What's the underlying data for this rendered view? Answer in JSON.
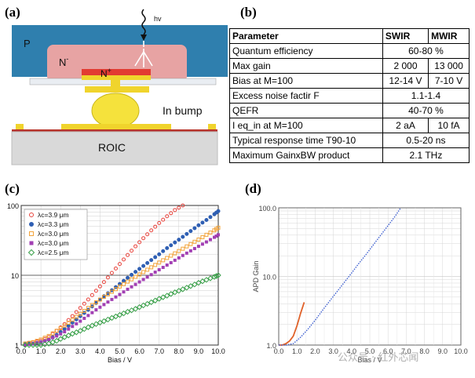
{
  "panels": {
    "a": {
      "label": "(a)",
      "p_label": "P",
      "n_minus_label": "N",
      "n_minus_sup": "-",
      "n_plus_label": "N",
      "n_plus_sup": "+",
      "hv_label": "hv",
      "bump_label": "In bump",
      "roic_label": "ROIC"
    },
    "b": {
      "label": "(b)",
      "headers": [
        "Parameter",
        "SWIR",
        "MWIR"
      ],
      "rows": [
        {
          "param": "Quantum efficiency",
          "span": "60-80 %"
        },
        {
          "param": "Max gain",
          "swir": "2 000",
          "mwir": "13 000"
        },
        {
          "param": "Bias at M=100",
          "swir": "12-14  V",
          "mwir": "7-10 V"
        },
        {
          "param": "Excess noise factir F",
          "span": "1.1-1.4"
        },
        {
          "param": "QEFR",
          "span": "40-70 %"
        },
        {
          "param": "I eq_in at M=100",
          "swir": "2 aA",
          "mwir": "10 fA"
        },
        {
          "param": "Typical response time T90-10",
          "span": "0.5-20 ns"
        },
        {
          "param": "Maximum GainxBW product",
          "span": "2.1 THz"
        }
      ]
    },
    "c": {
      "label": "(c)"
    },
    "d": {
      "label": "(d)"
    }
  },
  "chart_data": [
    {
      "type": "scatter",
      "panel": "c",
      "xlabel": "Bias / V",
      "ylabel": "",
      "xlim": [
        0,
        10
      ],
      "ylim": [
        1,
        100
      ],
      "y_scale": "log",
      "x_ticks": [
        "0.0",
        "1.0",
        "2.0",
        "3.0",
        "4.0",
        "5.0",
        "6.0",
        "7.0",
        "8.0",
        "9.0",
        "10.0"
      ],
      "y_ticks": [
        "1",
        "10",
        "100"
      ],
      "grid": true,
      "legend_position": "top-left",
      "series": [
        {
          "name": "λc=3.9 μm",
          "marker": "open-circle",
          "color": "#e8433c",
          "x": [
            0.2,
            0.6,
            1.0,
            1.4,
            1.8,
            2.2,
            2.6,
            3.0,
            3.4,
            3.8,
            4.2,
            4.6,
            5.0,
            5.4,
            5.8,
            6.2,
            6.6,
            7.0,
            7.4,
            7.8,
            8.2
          ],
          "y": [
            1.05,
            1.1,
            1.15,
            1.3,
            1.6,
            2.0,
            2.6,
            3.4,
            4.5,
            6.0,
            8.0,
            10.8,
            14.5,
            19.5,
            26,
            34,
            44,
            56,
            70,
            86,
            100
          ]
        },
        {
          "name": "λc=3.3 μm",
          "marker": "filled-circle",
          "color": "#2f5fb3",
          "x": [
            0.2,
            0.6,
            1.0,
            1.4,
            1.8,
            2.2,
            2.6,
            3.0,
            3.4,
            3.8,
            4.2,
            4.6,
            5.0,
            5.4,
            5.8,
            6.2,
            6.6,
            7.0,
            7.4,
            7.8,
            8.2,
            8.6,
            9.0,
            9.4,
            9.8,
            10.0
          ],
          "y": [
            1.05,
            1.05,
            1.1,
            1.2,
            1.4,
            1.7,
            2.1,
            2.6,
            3.2,
            4.0,
            5.0,
            6.1,
            7.5,
            9.2,
            11.2,
            13.6,
            16.5,
            20,
            24.5,
            29.5,
            35.5,
            43,
            52,
            62,
            75,
            83
          ]
        },
        {
          "name": "λc=3.0 μm",
          "marker": "open-square",
          "color": "#f2a33a",
          "x": [
            0.2,
            0.6,
            1.0,
            1.4,
            1.8,
            2.2,
            2.6,
            3.0,
            3.4,
            3.8,
            4.2,
            4.6,
            5.0,
            5.4,
            5.8,
            6.2,
            6.6,
            7.0,
            7.4,
            7.8,
            8.2,
            8.6,
            9.0,
            9.4,
            9.8,
            10.0
          ],
          "y": [
            1.05,
            1.1,
            1.2,
            1.35,
            1.6,
            1.9,
            2.3,
            2.8,
            3.4,
            4.1,
            4.9,
            5.8,
            6.9,
            8.1,
            9.5,
            11.1,
            13,
            15.2,
            17.7,
            20.6,
            24,
            28,
            32.5,
            38,
            44,
            48
          ]
        },
        {
          "name": "λc=3.0 μm",
          "marker": "filled-square",
          "color": "#a23fb3",
          "x": [
            0.2,
            0.6,
            1.0,
            1.4,
            1.8,
            2.2,
            2.6,
            3.0,
            3.4,
            3.8,
            4.2,
            4.6,
            5.0,
            5.4,
            5.8,
            6.2,
            6.6,
            7.0,
            7.4,
            7.8,
            8.2,
            8.6,
            9.0,
            9.4,
            9.8,
            10.0
          ],
          "y": [
            1.0,
            1.05,
            1.1,
            1.2,
            1.35,
            1.55,
            1.85,
            2.2,
            2.65,
            3.2,
            3.8,
            4.5,
            5.3,
            6.3,
            7.4,
            8.7,
            10.2,
            12,
            14,
            16.4,
            19.2,
            22.4,
            26,
            30,
            35,
            38
          ]
        },
        {
          "name": "λc=2.5 μm",
          "marker": "open-diamond",
          "color": "#3aa04a",
          "x": [
            0.2,
            0.6,
            1.0,
            1.4,
            1.8,
            2.2,
            2.6,
            3.0,
            3.4,
            3.8,
            4.2,
            4.6,
            5.0,
            5.4,
            5.8,
            6.2,
            6.6,
            7.0,
            7.4,
            7.8,
            8.2,
            8.6,
            9.0,
            9.4,
            9.8,
            10.0
          ],
          "y": [
            1.0,
            1.0,
            1.0,
            1.05,
            1.15,
            1.3,
            1.45,
            1.6,
            1.8,
            2.0,
            2.2,
            2.45,
            2.7,
            3.0,
            3.3,
            3.7,
            4.1,
            4.6,
            5.1,
            5.7,
            6.3,
            7.0,
            7.8,
            8.6,
            9.5,
            10
          ]
        }
      ]
    },
    {
      "type": "line",
      "panel": "d",
      "xlabel": "Bias / V",
      "ylabel": "APD Gain",
      "xlim": [
        0,
        10
      ],
      "ylim": [
        1,
        100
      ],
      "y_scale": "log",
      "x_ticks": [
        "0.0",
        "1.0",
        "2.0",
        "3.0",
        "4.0",
        "5.0",
        "6.0",
        "7.0",
        "8.0",
        "9.0",
        "10.0"
      ],
      "y_ticks": [
        "1.0",
        "10.0",
        "100.0"
      ],
      "grid": true,
      "series": [
        {
          "name": "",
          "color": "#e0622a",
          "x": [
            0.0,
            0.2,
            0.4,
            0.6,
            0.8,
            1.0,
            1.2,
            1.4
          ],
          "y": [
            1.0,
            1.0,
            1.05,
            1.15,
            1.35,
            1.9,
            2.9,
            4.2
          ]
        },
        {
          "name": "",
          "color": "#3d5fd0",
          "style": "dotted",
          "x": [
            0.0,
            0.4,
            0.8,
            1.2,
            1.6,
            2.0,
            2.4,
            2.8,
            3.2,
            3.6,
            4.0,
            4.4,
            4.8,
            5.2,
            5.6,
            6.0,
            6.4,
            6.7
          ],
          "y": [
            1.0,
            1.0,
            1.05,
            1.3,
            1.7,
            2.3,
            3.2,
            4.4,
            6.0,
            8.2,
            11.2,
            15.5,
            21,
            29,
            40,
            55,
            76,
            100
          ]
        }
      ]
    }
  ],
  "watermark": {
    "text": "公众号 · 红外芯闻"
  }
}
